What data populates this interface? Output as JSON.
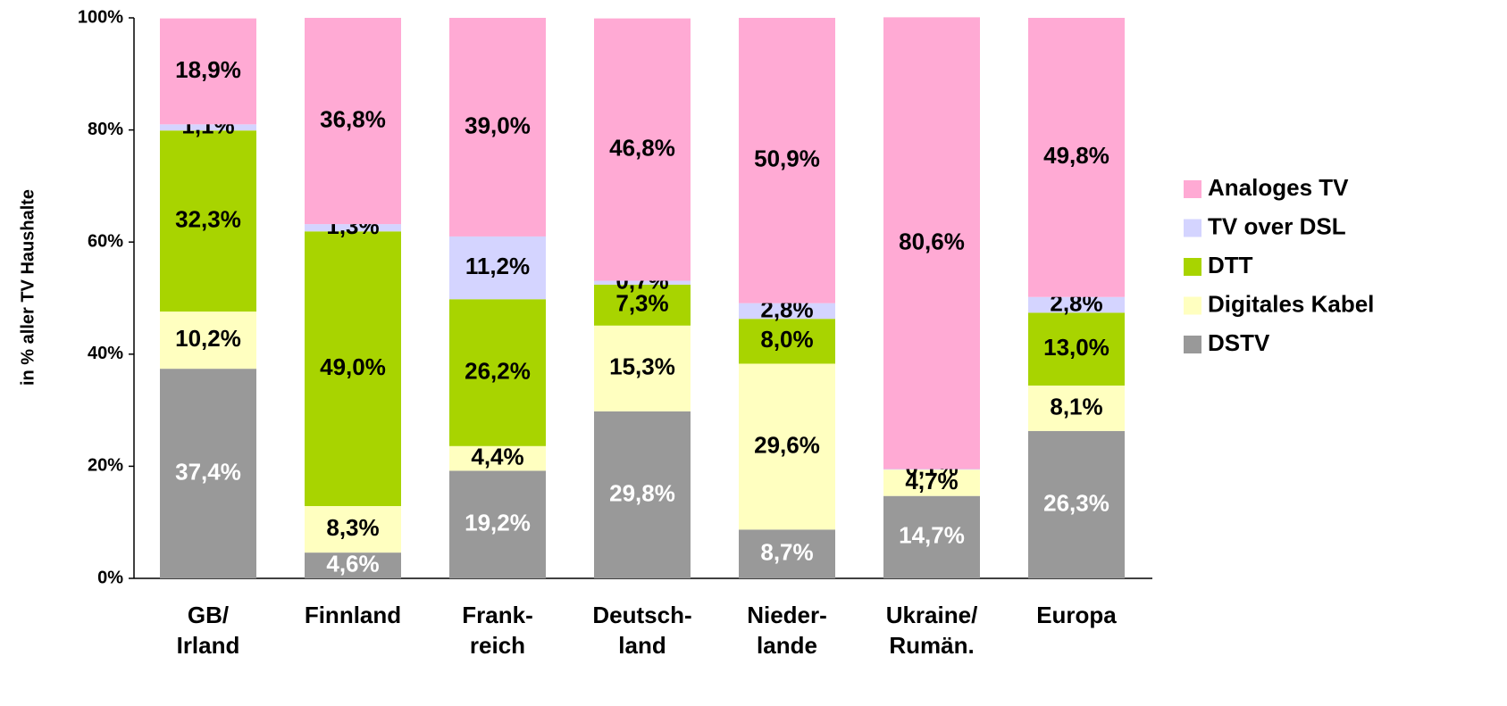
{
  "chart_data": {
    "type": "stacked_bar",
    "y_label": "in % aller TV Haushalte",
    "categories": [
      "GB/\nIrland",
      "Finnland",
      "Frank-\nreich",
      "Deutsch-\nland",
      "Nieder-\nlande",
      "Ukraine/\nRumän.",
      "Europa"
    ],
    "series": [
      {
        "name": "Analoges TV",
        "color": "#ffaad4",
        "label_color": "#000000",
        "values": [
          18.9,
          36.8,
          39.0,
          46.8,
          50.9,
          80.6,
          49.8
        ],
        "value_labels": [
          "18,9%",
          "36,8%",
          "39,0%",
          "46,8%",
          "50,9%",
          "80,6%",
          "49,8%"
        ]
      },
      {
        "name": "TV over DSL",
        "color": "#d4d4ff",
        "label_color": "#000000",
        "values": [
          1.1,
          1.3,
          11.2,
          0.7,
          2.8,
          0.1,
          2.8
        ],
        "value_labels": [
          "1,1%",
          "1,3%",
          "11,2%",
          "0,7%",
          "2,8%",
          "0,1%",
          "2,8%"
        ]
      },
      {
        "name": "DTT",
        "color": "#a8d400",
        "label_color": "#000000",
        "values": [
          32.3,
          49.0,
          26.2,
          7.3,
          8.0,
          null,
          13.0
        ],
        "value_labels": [
          "32,3%",
          "49,0%",
          "26,2%",
          "7,3%",
          "8,0%",
          null,
          "13,0%"
        ]
      },
      {
        "name": "Digitales Kabel",
        "color": "#ffffc0",
        "label_color": "#000000",
        "values": [
          10.2,
          8.3,
          4.4,
          15.3,
          29.6,
          4.7,
          8.1
        ],
        "value_labels": [
          "10,2%",
          "8,3%",
          "4,4%",
          "15,3%",
          "29,6%",
          "4,7%",
          "8,1%"
        ]
      },
      {
        "name": "DSTV",
        "color": "#999999",
        "label_color": "#ffffff",
        "values": [
          37.4,
          4.6,
          19.2,
          29.8,
          8.7,
          14.7,
          26.3
        ],
        "value_labels": [
          "37,4%",
          "4,6%",
          "19,2%",
          "29,8%",
          "8,7%",
          "14,7%",
          "26,3%"
        ]
      }
    ],
    "ylim": [
      0,
      100
    ],
    "yticks": [
      {
        "value": 0,
        "label": "0%"
      },
      {
        "value": 20,
        "label": "20%"
      },
      {
        "value": 40,
        "label": "40%"
      },
      {
        "value": 60,
        "label": "60%"
      },
      {
        "value": 80,
        "label": "80%"
      },
      {
        "value": 100,
        "label": "100%"
      }
    ],
    "legend": "right"
  }
}
